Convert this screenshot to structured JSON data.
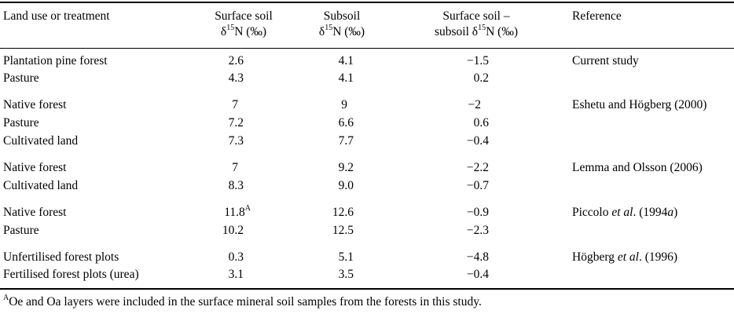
{
  "header": {
    "col0": "Land use or treatment",
    "col1_line1": "Surface soil",
    "col1_line2_pre": "δ",
    "col1_line2_sup": "15",
    "col1_line2_post": "N (‰)",
    "col2_line1": "Subsoil",
    "col2_line2_pre": "δ",
    "col2_line2_sup": "15",
    "col2_line2_post": "N (‰)",
    "col3_line1": "Surface soil –",
    "col3_line2_pre": "subsoil δ",
    "col3_line2_sup": "15",
    "col3_line2_post": "N (‰)",
    "col4": "Reference"
  },
  "rows": [
    {
      "land": "Plantation pine forest",
      "surface": "2.6",
      "subsoil": "4.1",
      "diff": "−1.5",
      "ref": "Current study"
    },
    {
      "land": "Pasture",
      "surface": "4.3",
      "subsoil": "4.1",
      "diff": "0.2",
      "ref": ""
    },
    {
      "land": "Native forest",
      "surface": "7",
      "subsoil": "9",
      "diff": "−2",
      "ref": "Eshetu and Högberg (2000)"
    },
    {
      "land": "Pasture",
      "surface": "7.2",
      "subsoil": "6.6",
      "diff": "0.6",
      "ref": ""
    },
    {
      "land": "Cultivated land",
      "surface": "7.3",
      "subsoil": "7.7",
      "diff": "−0.4",
      "ref": ""
    },
    {
      "land": "Native forest",
      "surface": "7",
      "subsoil": "9.2",
      "diff": "−2.2",
      "ref": "Lemma and Olsson (2006)"
    },
    {
      "land": "Cultivated land",
      "surface": "8.3",
      "subsoil": "9.0",
      "diff": "−0.7",
      "ref": ""
    },
    {
      "land": "Native forest",
      "surface": "11.8",
      "surface_sup": "A",
      "subsoil": "12.6",
      "diff": "−0.9",
      "ref_pre": "Piccolo ",
      "ref_em": "et al",
      "ref_mid": ". (1994",
      "ref_em2": "a",
      "ref_post": ")"
    },
    {
      "land": "Pasture",
      "surface": "10.2",
      "subsoil": "12.5",
      "diff": "−2.3",
      "ref": ""
    },
    {
      "land": "Unfertilised forest plots",
      "surface": "0.3",
      "subsoil": "5.1",
      "diff": "−4.8",
      "ref_pre": "Högberg ",
      "ref_em": "et al",
      "ref_mid": ". (1996)",
      "ref_em2": "",
      "ref_post": ""
    },
    {
      "land": "Fertilised forest plots (urea)",
      "surface": "3.1",
      "subsoil": "3.5",
      "diff": "−0.4",
      "ref": ""
    }
  ],
  "footnote": {
    "marker": "A",
    "text": "Oe and Oa layers were included in the surface mineral soil samples from the forests in this study."
  }
}
